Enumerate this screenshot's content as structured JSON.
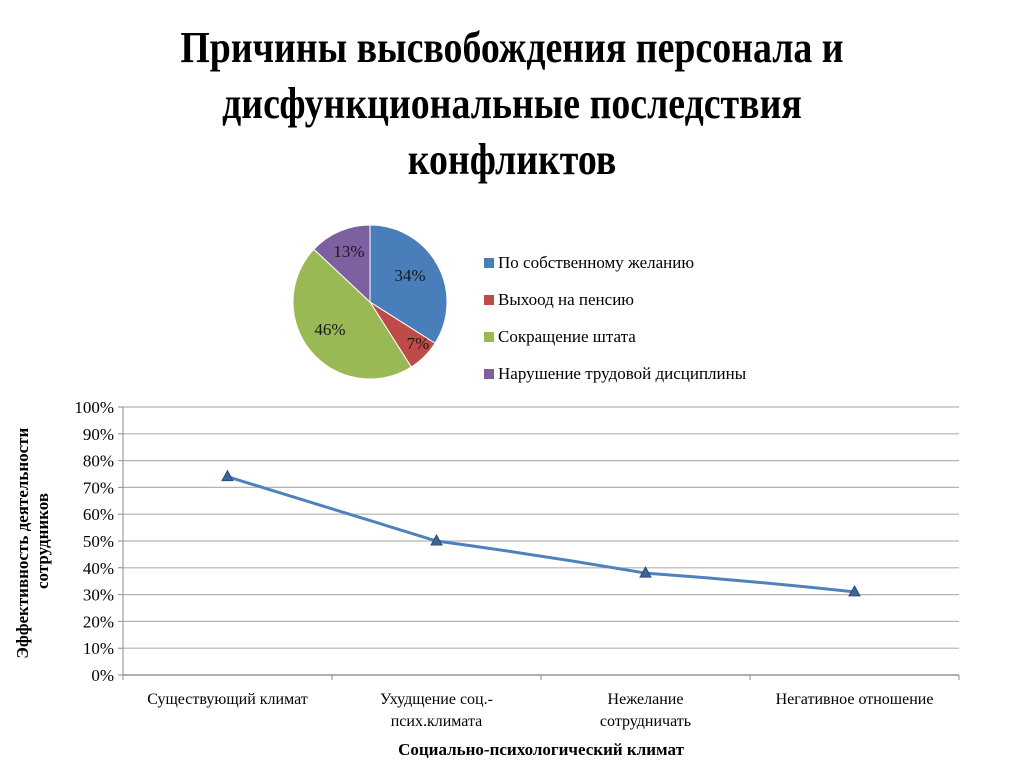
{
  "slide": {
    "title_lines": [
      "Причины высвобождения персонала и",
      "дисфункциональные последствия",
      "конфликтов"
    ]
  },
  "chart_data": [
    {
      "type": "pie",
      "title": "",
      "categories": [
        "По собственному желанию",
        "Выхоод на пенсию",
        "Сокращение штата",
        "Нарушение трудовой дисциплины"
      ],
      "values": [
        34,
        7,
        46,
        13
      ],
      "labels": [
        "34%",
        "7%",
        "46%",
        "13%"
      ],
      "colors": [
        "#4a7ebb",
        "#be4b48",
        "#98b954",
        "#7d60a0"
      ],
      "legend_position": "right"
    },
    {
      "type": "line",
      "title": "",
      "categories": [
        "Существующий климат",
        "Ухудщение соц.-псих.климата",
        "Нежелание сотрудничать",
        "Негативное отношение"
      ],
      "category_label_lines": [
        [
          "Существующий климат"
        ],
        [
          "Ухудщение соц.-",
          "псих.климата"
        ],
        [
          "Нежелание",
          "сотрудничать"
        ],
        [
          "Негативное отношение"
        ]
      ],
      "series": [
        {
          "name": "Эффективность деятельности сотрудников",
          "values": [
            0.74,
            0.5,
            0.38,
            0.31
          ],
          "color": "#4f81bd",
          "marker": "triangle"
        }
      ],
      "xlabel": "Социально-психологический климат",
      "ylabel_lines": [
        "Эффективность деятельности",
        "сотрудников"
      ],
      "ylim": [
        0,
        1
      ],
      "yticks": [
        "0%",
        "10%",
        "20%",
        "30%",
        "40%",
        "50%",
        "60%",
        "70%",
        "80%",
        "90%",
        "100%"
      ],
      "grid": true
    }
  ]
}
